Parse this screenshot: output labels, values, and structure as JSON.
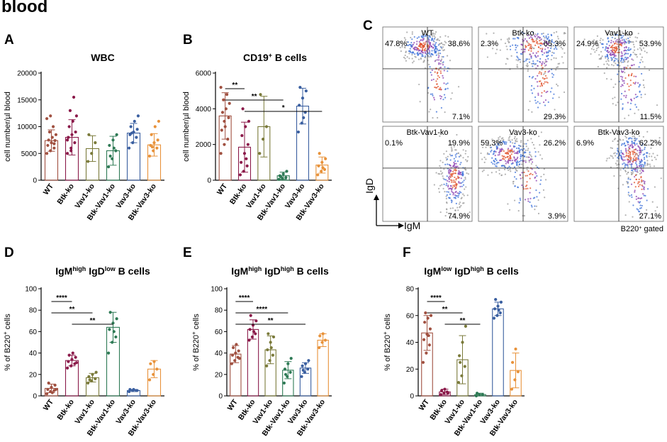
{
  "page_title": "blood",
  "panel_letters": {
    "A": "A",
    "B": "B",
    "C": "C",
    "D": "D",
    "E": "E",
    "F": "F"
  },
  "groups": [
    "WT",
    "Btk-ko",
    "Vav1-ko",
    "Btk-Vav1-ko",
    "Vav3-ko",
    "Btk-Vav3-ko"
  ],
  "colors": {
    "WT": "#a05040",
    "Btk-ko": "#8b1a4a",
    "Vav1-ko": "#7a7a3a",
    "Btk-Vav1-ko": "#2e7a55",
    "Vav3-ko": "#3a5fa0",
    "Btk-Vav3-ko": "#e8923a"
  },
  "chart_data": [
    {
      "id": "A",
      "type": "bar",
      "title": "WBC",
      "title_sup": "",
      "title_suffix": "",
      "ylabel": "cell number/µl blood",
      "ylim": [
        0,
        20000
      ],
      "yticks": [
        "0",
        "5000",
        "10000",
        "15000",
        "20000"
      ],
      "ytick_values": [
        0,
        5000,
        10000,
        15000,
        20000
      ],
      "categories": [
        "WT",
        "Btk-ko",
        "Vav1-ko",
        "Btk-Vav1-ko",
        "Vav3-ko",
        "Btk-Vav3-ko"
      ],
      "values": [
        7400,
        8000,
        5900,
        5500,
        8800,
        6600
      ],
      "error": [
        2000,
        3300,
        2400,
        2700,
        1800,
        2100
      ],
      "points": [
        [
          5000,
          5500,
          6000,
          6500,
          7000,
          7400,
          7500,
          8000,
          8500,
          9000,
          10000,
          11500,
          12000,
          6800
        ],
        [
          5000,
          6000,
          7000,
          8000,
          8500,
          9000,
          10000,
          11000,
          12000,
          13000,
          15500,
          7500,
          5500
        ],
        [
          3500,
          5000,
          7000,
          8500
        ],
        [
          2500,
          4000,
          5500,
          6500,
          7500,
          8500,
          4500,
          6000
        ],
        [
          6000,
          7000,
          8000,
          8500,
          9000,
          9500,
          10000,
          11000,
          12000,
          8800
        ],
        [
          4500,
          5500,
          6000,
          6500,
          7000,
          7500,
          8500,
          10000,
          11000,
          6200
        ]
      ],
      "significance": []
    },
    {
      "id": "B",
      "type": "bar",
      "title": "CD19",
      "title_sup": "+",
      "title_suffix": " B cells",
      "ylabel": "cell number/µl blood",
      "ylim": [
        0,
        6000
      ],
      "yticks": [
        "0",
        "2000",
        "4000",
        "6000"
      ],
      "ytick_values": [
        0,
        2000,
        4000,
        6000
      ],
      "categories": [
        "WT",
        "Btk-ko",
        "Vav1-ko",
        "Btk-Vav1-ko",
        "Vav3-ko",
        "Btk-Vav3-ko"
      ],
      "values": [
        3600,
        1850,
        3000,
        250,
        4150,
        850
      ],
      "error": [
        1300,
        1400,
        1700,
        200,
        1000,
        450
      ],
      "points": [
        [
          1500,
          2000,
          2300,
          2800,
          3000,
          3500,
          3800,
          4000,
          4300,
          4500,
          4800,
          5200,
          3300
        ],
        [
          300,
          500,
          800,
          1000,
          1500,
          2000,
          2500,
          3000,
          3300,
          4000,
          1200
        ],
        [
          1500,
          2300,
          3000,
          4800
        ],
        [
          50,
          100,
          150,
          250,
          350,
          500,
          200
        ],
        [
          2700,
          3200,
          3800,
          4200,
          4600,
          5000,
          5200,
          3500
        ],
        [
          300,
          500,
          600,
          800,
          1000,
          1200,
          1500,
          700
        ]
      ],
      "significance": [
        {
          "from": 0,
          "to": 1,
          "label": "**"
        },
        {
          "from": 0,
          "to": 3,
          "label": "**"
        },
        {
          "from": 1,
          "to": 5,
          "label": "*"
        }
      ]
    },
    {
      "id": "D",
      "type": "bar",
      "title": "IgM",
      "title_sup": "high",
      "title_suffix": " IgD",
      "title_sup2": "low",
      "title_suffix2": " B cells",
      "ylabel": "% of B220",
      "ylabel_sup": "+",
      "ylabel_suffix": " cells",
      "ylim": [
        0,
        100
      ],
      "yticks": [
        "0",
        "20",
        "40",
        "60",
        "80",
        "100"
      ],
      "ytick_values": [
        0,
        20,
        40,
        60,
        80,
        100
      ],
      "categories": [
        "WT",
        "Btk-ko",
        "Vav1-ko",
        "Btk-Vav1-ko",
        "Vav3-ko",
        "Btk-Vav3-ko"
      ],
      "values": [
        7,
        33,
        17,
        64,
        5,
        25
      ],
      "error": [
        4,
        5,
        4,
        14,
        1,
        8
      ],
      "points": [
        [
          2,
          4,
          5,
          6,
          8,
          10,
          12,
          3,
          6
        ],
        [
          26,
          28,
          30,
          32,
          34,
          36,
          38,
          40,
          31
        ],
        [
          12,
          14,
          16,
          18,
          20,
          22,
          15
        ],
        [
          40,
          50,
          55,
          62,
          68,
          72,
          78,
          60
        ],
        [
          4,
          5,
          5,
          6,
          6,
          5
        ],
        [
          15,
          20,
          25,
          30,
          32
        ]
      ],
      "significance": [
        {
          "from": 0,
          "to": 1,
          "label": "****"
        },
        {
          "from": 0,
          "to": 2,
          "label": "**"
        },
        {
          "from": 1,
          "to": 3,
          "label": "**"
        }
      ]
    },
    {
      "id": "E",
      "type": "bar",
      "title": "IgM",
      "title_sup": "high",
      "title_suffix": " IgD",
      "title_sup2": "high",
      "title_suffix2": " B cells",
      "ylabel": "% of B220",
      "ylabel_sup": "+",
      "ylabel_suffix": " cells",
      "ylim": [
        0,
        100
      ],
      "yticks": [
        "0",
        "20",
        "40",
        "60",
        "80",
        "100"
      ],
      "ytick_values": [
        0,
        20,
        40,
        60,
        80,
        100
      ],
      "categories": [
        "WT",
        "Btk-ko",
        "Vav1-ko",
        "Btk-Vav1-ko",
        "Vav3-ko",
        "Btk-Vav3-ko"
      ],
      "values": [
        39,
        62,
        43,
        24,
        26,
        52
      ],
      "error": [
        8,
        9,
        13,
        8,
        5,
        6
      ],
      "points": [
        [
          30,
          33,
          36,
          38,
          40,
          42,
          45,
          48,
          35
        ],
        [
          52,
          55,
          58,
          62,
          66,
          70,
          75,
          60
        ],
        [
          28,
          33,
          38,
          43,
          50,
          55,
          58,
          45
        ],
        [
          12,
          18,
          22,
          25,
          30,
          35,
          20
        ],
        [
          18,
          22,
          25,
          28,
          30,
          33,
          24
        ],
        [
          45,
          50,
          52,
          56,
          58
        ]
      ],
      "significance": [
        {
          "from": 0,
          "to": 1,
          "label": "****"
        },
        {
          "from": 0,
          "to": 3,
          "label": "****"
        },
        {
          "from": 0,
          "to": 4,
          "label": "**"
        }
      ]
    },
    {
      "id": "F",
      "type": "bar",
      "title": "IgM",
      "title_sup": "low",
      "title_suffix": " IgD",
      "title_sup2": "high",
      "title_suffix2": " B cells",
      "ylabel": "% of B220",
      "ylabel_sup": "+",
      "ylabel_suffix": " cells",
      "ylim": [
        0,
        80
      ],
      "yticks": [
        "0",
        "20",
        "40",
        "60",
        "80"
      ],
      "ytick_values": [
        0,
        20,
        40,
        60,
        80
      ],
      "categories": [
        "WT",
        "Btk-ko",
        "Vav1-ko",
        "Btk-Vav1-ko",
        "Vav3-ko",
        "Btk-Vav3-ko"
      ],
      "values": [
        47,
        3,
        27,
        1,
        65,
        19
      ],
      "error": [
        13,
        2,
        18,
        1,
        5,
        13
      ],
      "points": [
        [
          25,
          32,
          38,
          42,
          46,
          50,
          55,
          58,
          60,
          62,
          45
        ],
        [
          1,
          2,
          3,
          4,
          5,
          2
        ],
        [
          10,
          15,
          22,
          30,
          40,
          52,
          25
        ],
        [
          0,
          1,
          1,
          2
        ],
        [
          58,
          60,
          62,
          65,
          67,
          70,
          72,
          64
        ],
        [
          5,
          12,
          18,
          25,
          35
        ]
      ],
      "significance": [
        {
          "from": 0,
          "to": 1,
          "label": "****"
        },
        {
          "from": 0,
          "to": 2,
          "label": "**"
        },
        {
          "from": 1,
          "to": 3,
          "label": "**"
        }
      ]
    }
  ],
  "flow": {
    "x_axis_label": "IgM",
    "y_axis_label": "IgD",
    "gate_note": "B220",
    "gate_note_sup": "+",
    "gate_note_suffix": " gated",
    "plots": [
      {
        "name": "WT",
        "ul": "47.8%",
        "ur": "38.6%",
        "lr": "7.1%",
        "ll": ""
      },
      {
        "name": "Btk-ko",
        "ul": "2.3%",
        "ur": "65.3%",
        "lr": "29.3%",
        "ll": ""
      },
      {
        "name": "Vav1-ko",
        "ul": "24.9%",
        "ur": "53.9%",
        "lr": "11.5%",
        "ll": ""
      },
      {
        "name": "Btk-Vav1-ko",
        "ul": "0.1%",
        "ur": "19.9%",
        "lr": "74.9%",
        "ll": ""
      },
      {
        "name": "Vav3-ko",
        "ul": "59.3%",
        "ur": "26.2%",
        "lr": "3.9%",
        "ll": ""
      },
      {
        "name": "Btk-Vav3-ko",
        "ul": "6.9%",
        "ur": "62.2%",
        "lr": "27.1%",
        "ll": ""
      }
    ]
  }
}
